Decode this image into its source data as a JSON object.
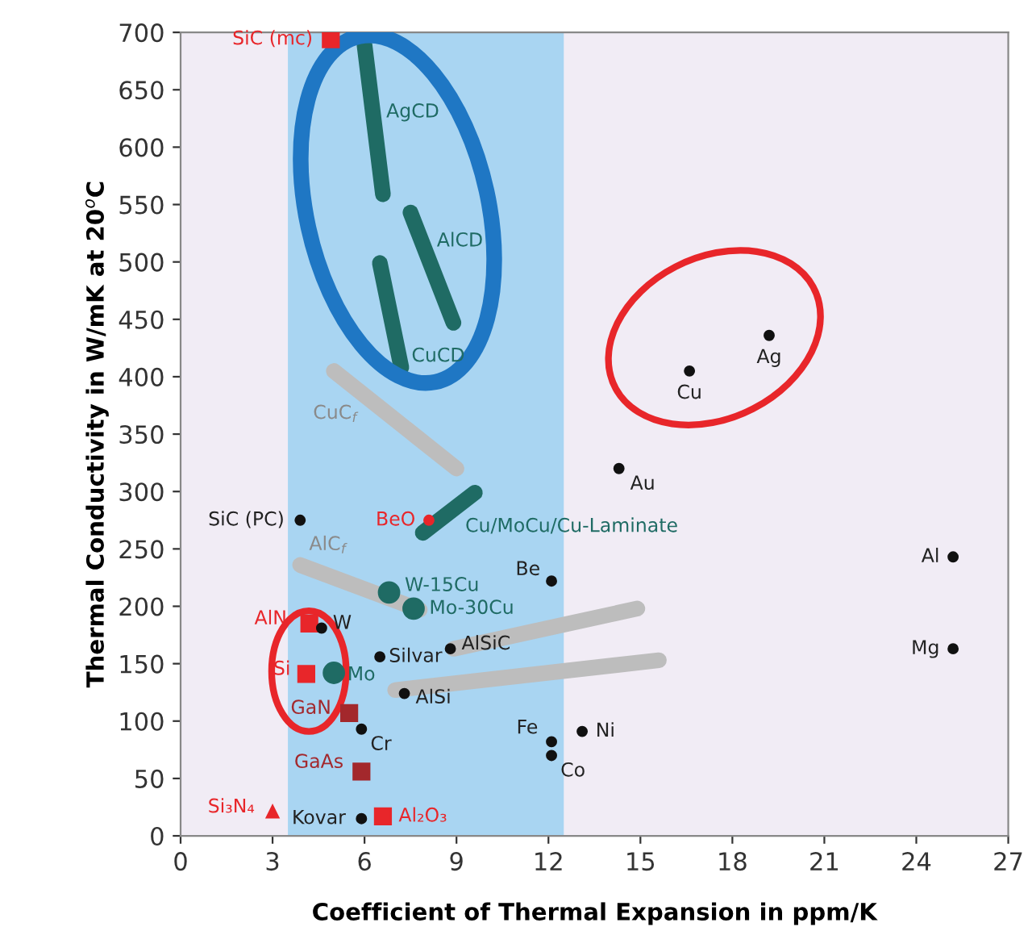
{
  "chart_data": {
    "type": "scatter",
    "xlabel": "Coefficient of Thermal Expansion in ppm/K",
    "ylabel": "Thermal Conductivity in W/mK at 20$^{o}$C",
    "xlim": [
      0,
      27
    ],
    "xticks": [
      0,
      3,
      6,
      9,
      12,
      15,
      18,
      21,
      24,
      27
    ],
    "ylim": [
      0,
      700
    ],
    "yticks": [
      0,
      50,
      100,
      150,
      200,
      250,
      300,
      350,
      400,
      450,
      500,
      550,
      600,
      650,
      700
    ],
    "grid": false,
    "legend": false,
    "bands": [
      {
        "axis": "x",
        "from": 3.5,
        "to": 12.5,
        "color": "#a9d5f2"
      }
    ],
    "series": [
      {
        "name": "SiC (mc)",
        "marker": "square",
        "color": "#e8262a",
        "x": [
          4.9
        ],
        "values": [
          694
        ]
      },
      {
        "name": "SiC (PC)",
        "marker": "circle",
        "color": "#111111",
        "x": [
          3.9
        ],
        "values": [
          275
        ]
      },
      {
        "name": "AgCD",
        "type": "line",
        "color": "#1f6b64",
        "x": [
          6.0,
          6.6
        ],
        "values": [
          689,
          559
        ]
      },
      {
        "name": "AlCD",
        "type": "line",
        "color": "#1f6b64",
        "x": [
          7.5,
          8.9
        ],
        "values": [
          543,
          447
        ]
      },
      {
        "name": "CuCD",
        "type": "line",
        "color": "#1f6b64",
        "x": [
          6.5,
          7.2
        ],
        "values": [
          499,
          408
        ]
      },
      {
        "name": "CuC$_{f}$",
        "type": "line",
        "color": "#bdbdbd",
        "x": [
          5.0,
          9.0
        ],
        "values": [
          405,
          320
        ]
      },
      {
        "name": "Cu/MoCu/Cu-Laminate",
        "type": "line",
        "color": "#1f6b64",
        "x": [
          7.9,
          9.6
        ],
        "values": [
          264,
          299
        ]
      },
      {
        "name": "BeO",
        "marker": "circle",
        "color": "#e8262a",
        "x": [
          8.1
        ],
        "values": [
          275
        ]
      },
      {
        "name": "AlC$_{f}$",
        "type": "line",
        "color": "#bdbdbd",
        "x": [
          3.9,
          7.8
        ],
        "values": [
          236,
          197
        ]
      },
      {
        "name": "W-15Cu",
        "marker": "circle",
        "color": "#1f6b64",
        "x": [
          6.8
        ],
        "values": [
          212
        ]
      },
      {
        "name": "Mo-30Cu",
        "marker": "circle",
        "color": "#1f6b64",
        "x": [
          7.6
        ],
        "values": [
          198
        ]
      },
      {
        "name": "AlN",
        "marker": "square",
        "color": "#e8262a",
        "x": [
          4.2
        ],
        "values": [
          185
        ]
      },
      {
        "name": "W",
        "marker": "circle",
        "color": "#111111",
        "x": [
          4.6
        ],
        "values": [
          181
        ]
      },
      {
        "name": "Si",
        "marker": "square",
        "color": "#e8262a",
        "x": [
          4.1
        ],
        "values": [
          141
        ]
      },
      {
        "name": "Mo",
        "marker": "circle",
        "color": "#1f6b64",
        "x": [
          5.0
        ],
        "values": [
          142
        ]
      },
      {
        "name": "GaN",
        "marker": "square",
        "color": "#a3282c",
        "x": [
          5.5
        ],
        "values": [
          107
        ]
      },
      {
        "name": "Cr",
        "marker": "circle",
        "color": "#111111",
        "x": [
          5.9
        ],
        "values": [
          93
        ]
      },
      {
        "name": "GaAs",
        "marker": "square",
        "color": "#a3282c",
        "x": [
          5.9
        ],
        "values": [
          56
        ]
      },
      {
        "name": "Si₃N₄",
        "marker": "triangle",
        "color": "#e8262a",
        "x": [
          3.0
        ],
        "values": [
          21
        ]
      },
      {
        "name": "Kovar",
        "marker": "circle",
        "color": "#111111",
        "x": [
          5.9
        ],
        "values": [
          15
        ]
      },
      {
        "name": "Al₂O₃",
        "marker": "square",
        "color": "#e8262a",
        "x": [
          6.6
        ],
        "values": [
          17
        ]
      },
      {
        "name": "Silvar",
        "marker": "circle",
        "color": "#111111",
        "x": [
          6.5
        ],
        "values": [
          156
        ]
      },
      {
        "type": "line",
        "color": "#bdbdbd",
        "x": [
          8.9,
          14.9
        ],
        "values": [
          163,
          198
        ]
      },
      {
        "name": "AlSiC",
        "marker": "circle",
        "color": "#111111",
        "x": [
          8.8
        ],
        "values": [
          163
        ]
      },
      {
        "type": "line",
        "color": "#bdbdbd",
        "x": [
          7.0,
          15.6
        ],
        "values": [
          127,
          153
        ]
      },
      {
        "name": "AlSi",
        "marker": "circle",
        "color": "#111111",
        "x": [
          7.3
        ],
        "values": [
          124
        ]
      },
      {
        "name": "Be",
        "marker": "circle",
        "color": "#111111",
        "x": [
          12.1
        ],
        "values": [
          222
        ]
      },
      {
        "name": "Fe",
        "marker": "circle",
        "color": "#111111",
        "x": [
          12.1
        ],
        "values": [
          82
        ]
      },
      {
        "name": "Co",
        "marker": "circle",
        "color": "#111111",
        "x": [
          12.1
        ],
        "values": [
          70
        ]
      },
      {
        "name": "Ni",
        "marker": "circle",
        "color": "#111111",
        "x": [
          13.1
        ],
        "values": [
          91
        ]
      },
      {
        "name": "Au",
        "marker": "circle",
        "color": "#111111",
        "x": [
          14.3
        ],
        "values": [
          320
        ]
      },
      {
        "name": "Cu",
        "marker": "circle",
        "color": "#111111",
        "x": [
          16.6
        ],
        "values": [
          405
        ]
      },
      {
        "name": "Ag",
        "marker": "circle",
        "color": "#111111",
        "x": [
          19.2
        ],
        "values": [
          436
        ]
      },
      {
        "name": "Al",
        "marker": "circle",
        "color": "#111111",
        "x": [
          25.2
        ],
        "values": [
          243
        ]
      },
      {
        "name": "Mg",
        "marker": "circle",
        "color": "#111111",
        "x": [
          25.2
        ],
        "values": [
          163
        ]
      }
    ]
  }
}
